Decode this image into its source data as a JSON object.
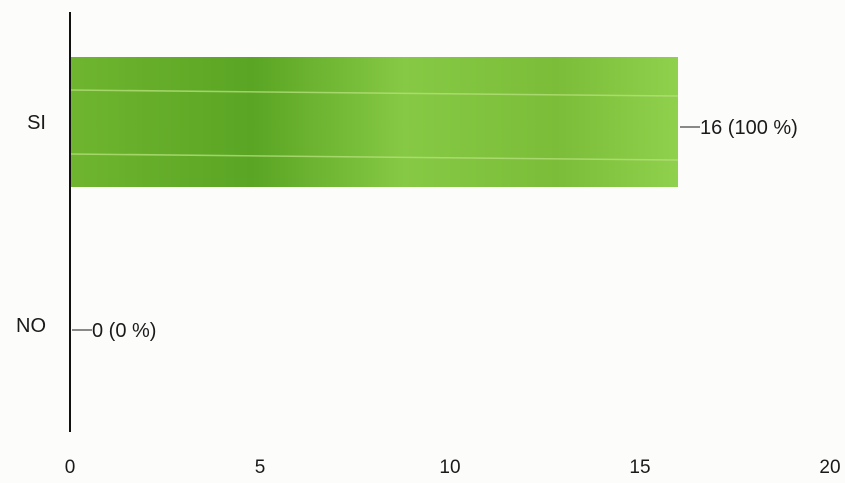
{
  "chart_data": {
    "type": "bar",
    "orientation": "horizontal",
    "categories": [
      "SI",
      "NO"
    ],
    "values": [
      16,
      0
    ],
    "data_labels": [
      "16 (100 %)",
      "0 (0 %)"
    ],
    "xlim": [
      0,
      20
    ],
    "x_ticks": [
      0,
      5,
      10,
      15,
      20
    ],
    "grid": false,
    "legend": "none",
    "title": "",
    "xlabel": "",
    "ylabel": "",
    "bar_color": "#7cc23a"
  }
}
